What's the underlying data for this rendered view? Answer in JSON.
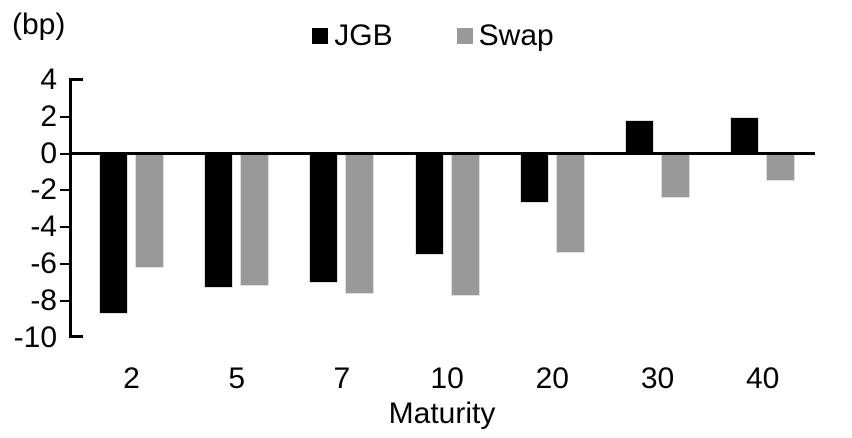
{
  "chart_data": {
    "type": "bar",
    "title": "",
    "unit_label": "(bp)",
    "xlabel": "Maturity",
    "categories": [
      "2",
      "5",
      "7",
      "10",
      "20",
      "30",
      "40"
    ],
    "series": [
      {
        "name": "JGB",
        "color": "#000000",
        "values": [
          -8.7,
          -7.3,
          -7.0,
          -5.5,
          -2.7,
          1.8,
          2.0
        ]
      },
      {
        "name": "Swap",
        "color": "#999999",
        "values": [
          -6.2,
          -7.2,
          -7.6,
          -7.7,
          -5.4,
          -2.4,
          -1.5
        ]
      }
    ],
    "y_axis": {
      "min": -10,
      "max": 4,
      "step": 2,
      "ticks": [
        "4",
        "2",
        "0",
        "-2",
        "-4",
        "-6",
        "-8",
        "-10"
      ]
    },
    "legend_position": "top",
    "grid": false,
    "zero_line": true
  }
}
